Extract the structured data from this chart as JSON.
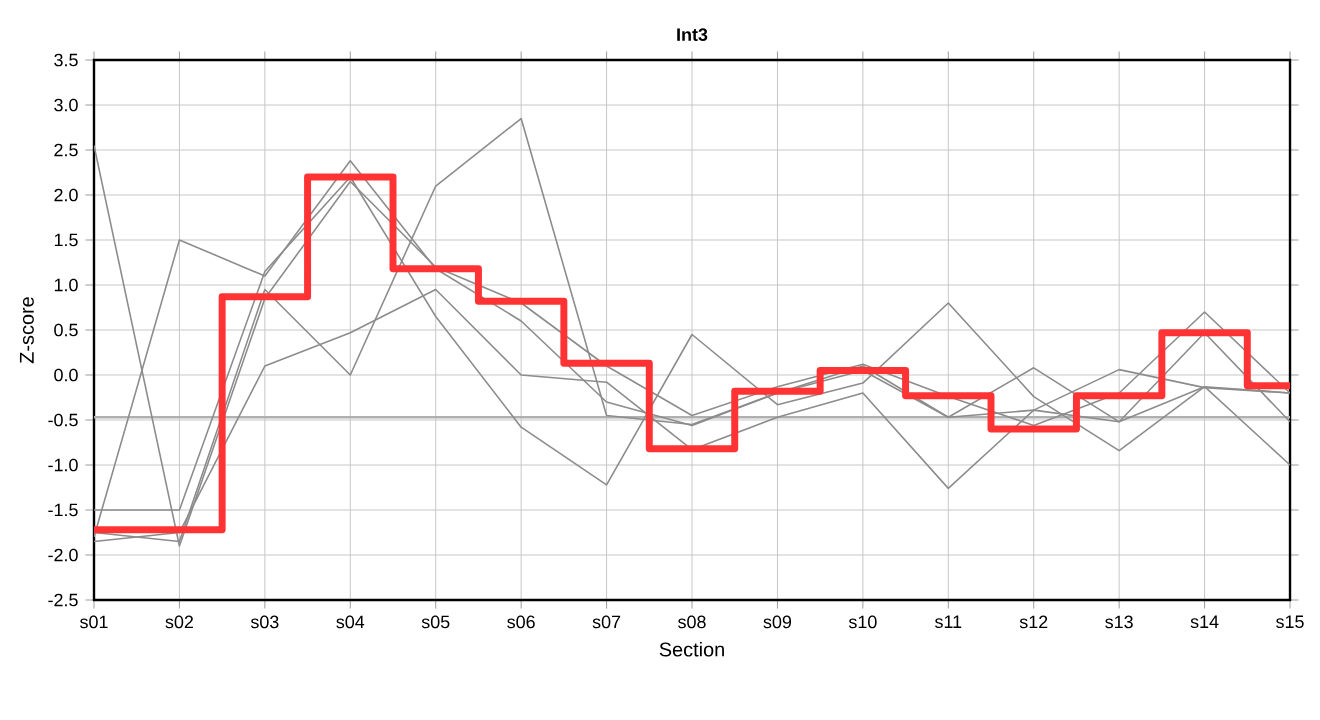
{
  "chart_data": {
    "type": "line",
    "title": "Int3",
    "xlabel": "Section",
    "ylabel": "Z-score",
    "categories": [
      "s01",
      "s02",
      "s03",
      "s04",
      "s05",
      "s06",
      "s07",
      "s08",
      "s09",
      "s10",
      "s11",
      "s12",
      "s13",
      "s14",
      "s15"
    ],
    "series": [
      {
        "color": "#8c8c8c",
        "values": [
          2.55,
          -1.9,
          0.85,
          2.15,
          1.2,
          0.8,
          0.1,
          -0.45,
          -0.13,
          0.12,
          -0.24,
          -0.56,
          -0.2,
          0.7,
          -0.2
        ]
      },
      {
        "color": "#8c8c8c",
        "values": [
          -1.8,
          1.5,
          1.1,
          2.38,
          1.18,
          0.6,
          -0.3,
          -0.56,
          -0.2,
          0.05,
          -0.47,
          0.08,
          -0.52,
          0.47,
          -0.52
        ]
      },
      {
        "color": "#8c8c8c",
        "values": [
          -1.5,
          -1.5,
          1.15,
          2.2,
          0.65,
          -0.58,
          -1.22,
          0.45,
          -0.33,
          -0.09,
          0.8,
          -0.24,
          -0.84,
          -0.13,
          -1.0
        ]
      },
      {
        "color": "#8c8c8c",
        "values": [
          -1.85,
          -1.75,
          0.1,
          0.47,
          0.95,
          0.0,
          -0.08,
          -0.83,
          -0.47,
          -0.2,
          -1.26,
          -0.39,
          0.06,
          -0.14,
          -0.2
        ]
      },
      {
        "color": "#8c8c8c",
        "values": [
          -1.75,
          -1.85,
          0.95,
          0.0,
          2.1,
          2.85,
          -0.45,
          -0.55,
          -0.2,
          0.1,
          -0.47,
          -0.39,
          -0.52,
          -0.13,
          -0.2
        ]
      },
      {
        "type": "step",
        "color": "#ff3333",
        "values": [
          -1.72,
          -1.72,
          0.87,
          2.2,
          1.18,
          0.82,
          0.13,
          -0.82,
          -0.18,
          0.05,
          -0.23,
          -0.6,
          -0.23,
          0.47,
          -0.12
        ]
      }
    ],
    "ref_lines": [
      {
        "axis": "y",
        "value": -0.47,
        "color": "#b0b0b0"
      }
    ],
    "ylim": [
      -2.5,
      3.5
    ],
    "yticks": [
      -2.5,
      {
        "value": -2,
        "label": "-2.0"
      },
      -1.5,
      {
        "value": -1,
        "label": "-1.0"
      },
      -0.5,
      {
        "value": 0,
        "label": "0.0"
      },
      0.5,
      {
        "value": 1,
        "label": "1.0"
      },
      1.5,
      {
        "value": 2,
        "label": "2.0"
      },
      2.5,
      {
        "value": 3,
        "label": "3.0"
      },
      3.5
    ],
    "grid": true
  }
}
